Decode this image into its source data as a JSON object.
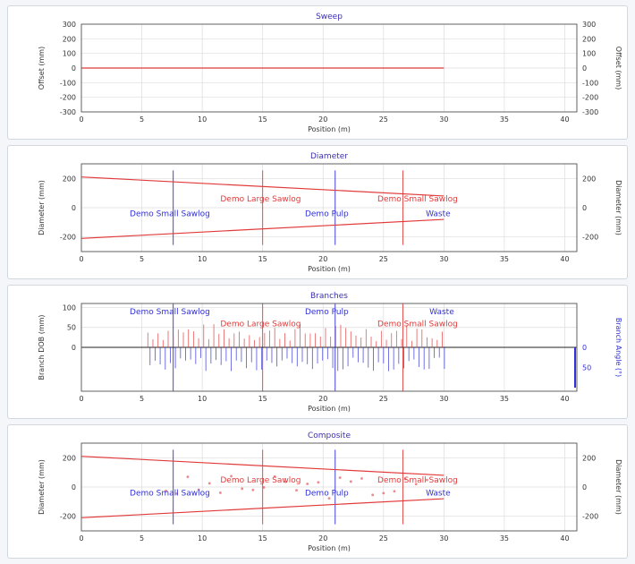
{
  "colors": {
    "title": "#3a2fb0",
    "axis_text": "#333333",
    "red": "#e23a3a",
    "blue": "#3030d8",
    "gridline": "#dcdcdc",
    "frame": "#606060"
  },
  "chart_data": [
    {
      "type": "line",
      "title": "Sweep",
      "xlabel": "Position (m)",
      "ylabel_left": "Offset (mm)",
      "ylabel_right": "Offset (mm)",
      "xlim": [
        0,
        41
      ],
      "ylim": [
        -300,
        300
      ],
      "xticks": [
        0,
        5,
        10,
        15,
        20,
        25,
        30,
        35,
        40
      ],
      "yticks": [
        300,
        200,
        100,
        0,
        -100,
        -200,
        -300
      ],
      "grid": true,
      "series": [
        {
          "color": "#e23a3a",
          "x": [
            0,
            30
          ],
          "y": [
            0,
            0
          ]
        }
      ]
    },
    {
      "type": "line",
      "title": "Diameter",
      "xlabel": "Position (m)",
      "ylabel_left": "Diameter (mm)",
      "ylabel_right": "Diameter (mm)",
      "xlim": [
        0,
        41
      ],
      "ylim": [
        -300,
        300
      ],
      "xticks": [
        0,
        5,
        10,
        15,
        20,
        25,
        30,
        35,
        40
      ],
      "yticks": [
        200,
        0,
        -200
      ],
      "grid": true,
      "series": [
        {
          "color": "#e23a3a",
          "x": [
            0,
            30
          ],
          "y": [
            210,
            80
          ]
        },
        {
          "color": "#e23a3a",
          "x": [
            0,
            30
          ],
          "y": [
            -210,
            -80
          ]
        }
      ],
      "cut_lines": [
        {
          "x": 7.6,
          "color": "#3030d8"
        },
        {
          "x": 15,
          "color": "#e23a3a"
        },
        {
          "x": 21,
          "color": "#3030d8"
        },
        {
          "x": 26.6,
          "color": "#e23a3a"
        }
      ],
      "annotations": [
        {
          "text": "Demo Small Sawlog",
          "x": 4,
          "y": -40,
          "color": "#3030d8"
        },
        {
          "text": "Demo Large Sawlog",
          "x": 11.5,
          "y": 60,
          "color": "#e23a3a"
        },
        {
          "text": "Demo Pulp",
          "x": 18.5,
          "y": -40,
          "color": "#3030d8"
        },
        {
          "text": "Demo Small Sawlog",
          "x": 24.5,
          "y": 60,
          "color": "#e23a3a"
        },
        {
          "text": "Waste",
          "x": 28.5,
          "y": -40,
          "color": "#3030d8"
        }
      ]
    },
    {
      "type": "bar",
      "title": "Branches",
      "xlabel": "Position (m)",
      "ylabel_left": "Branch DOB (mm)",
      "ylabel_right": "Branch Angle (°)",
      "xlim": [
        0,
        41
      ],
      "ylim": [
        -110,
        110
      ],
      "xticks": [
        0,
        5,
        10,
        15,
        20,
        25,
        30,
        35,
        40
      ],
      "yticks_left": [
        100,
        50,
        0
      ],
      "yticks_right": [
        0,
        50
      ],
      "grid": true,
      "cut_lines": [
        {
          "x": 7.6,
          "color": "#3030d8"
        },
        {
          "x": 15,
          "color": "#e23a3a"
        },
        {
          "x": 21,
          "color": "#3030d8"
        },
        {
          "x": 26.6,
          "color": "#e23a3a"
        }
      ],
      "annotations": [
        {
          "text": "Demo Small Sawlog",
          "x": 4,
          "y": 90,
          "color": "#3030d8"
        },
        {
          "text": "Demo Large Sawlog",
          "x": 11.5,
          "y": 60,
          "color": "#e23a3a"
        },
        {
          "text": "Demo Pulp",
          "x": 18.5,
          "y": 90,
          "color": "#3030d8"
        },
        {
          "text": "Demo Small Sawlog",
          "x": 24.5,
          "y": 60,
          "color": "#e23a3a"
        },
        {
          "text": "Waste",
          "x": 28.8,
          "y": 90,
          "color": "#3030d8"
        }
      ],
      "branch_range": [
        5.5,
        30
      ],
      "series": [
        {
          "name": "Branch DOB",
          "color": "#e23a3a",
          "direction": "up",
          "typical_max": 60
        },
        {
          "name": "Branch Angle",
          "color": "#3030d8",
          "direction": "down",
          "typical_max": 60
        }
      ]
    },
    {
      "type": "line",
      "title": "Composite",
      "xlabel": "Position (m)",
      "ylabel_left": "Diameter (mm)",
      "ylabel_right": "Diameter (mm)",
      "xlim": [
        0,
        41
      ],
      "ylim": [
        -300,
        300
      ],
      "xticks": [
        0,
        5,
        10,
        15,
        20,
        25,
        30,
        35,
        40
      ],
      "yticks": [
        200,
        0,
        -200
      ],
      "grid": true,
      "series": [
        {
          "color": "#e23a3a",
          "x": [
            0,
            30
          ],
          "y": [
            210,
            80
          ]
        },
        {
          "color": "#e23a3a",
          "x": [
            0,
            30
          ],
          "y": [
            -210,
            -80
          ]
        }
      ],
      "cut_lines": [
        {
          "x": 7.6,
          "color": "#3030d8"
        },
        {
          "x": 15,
          "color": "#e23a3a"
        },
        {
          "x": 21,
          "color": "#3030d8"
        },
        {
          "x": 26.6,
          "color": "#e23a3a"
        }
      ],
      "annotations": [
        {
          "text": "Demo Small Sawlog",
          "x": 4,
          "y": -40,
          "color": "#3030d8"
        },
        {
          "text": "Demo Large Sawlog",
          "x": 11.5,
          "y": 50,
          "color": "#e23a3a"
        },
        {
          "text": "Demo Pulp",
          "x": 18.5,
          "y": -40,
          "color": "#3030d8"
        },
        {
          "text": "Demo Small Sawlog",
          "x": 24.5,
          "y": 50,
          "color": "#e23a3a"
        },
        {
          "text": "Waste",
          "x": 28.5,
          "y": -40,
          "color": "#3030d8"
        }
      ]
    }
  ]
}
